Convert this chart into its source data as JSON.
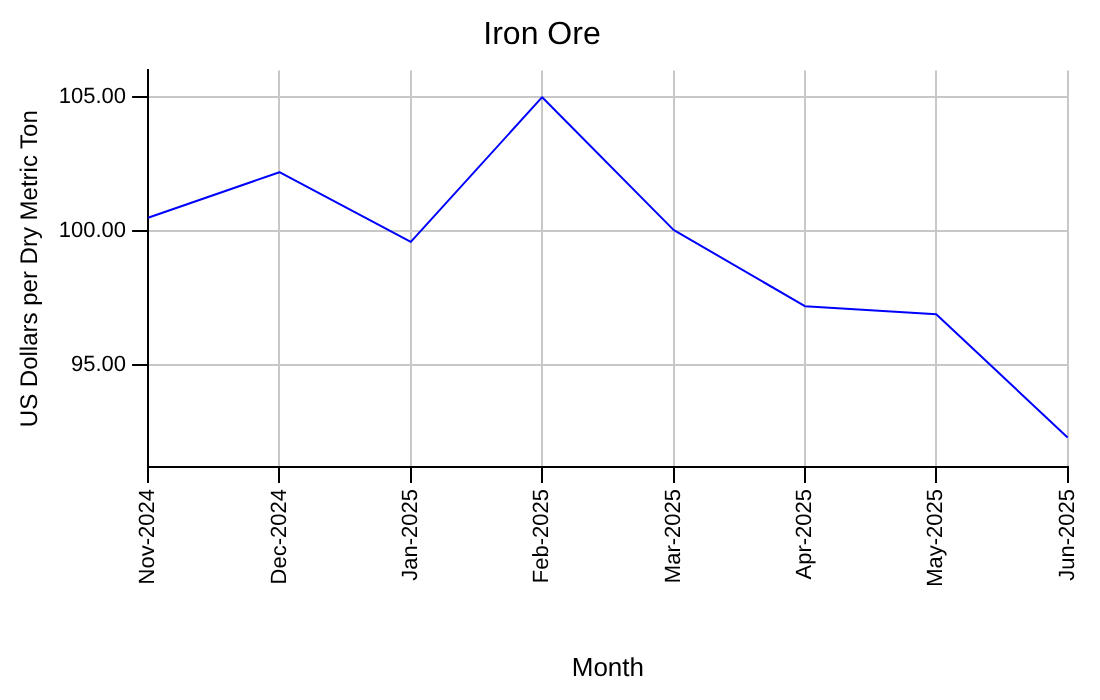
{
  "chart_data": {
    "type": "line",
    "title": "Iron Ore",
    "xlabel": "Month",
    "ylabel": "US Dollars per Dry Metric Ton",
    "categories": [
      "Nov-2024",
      "Dec-2024",
      "Jan-2025",
      "Feb-2025",
      "Mar-2025",
      "Apr-2025",
      "May-2025",
      "Jun-2025"
    ],
    "series": [
      {
        "color": "#0000ff",
        "values": [
          100.5,
          102.2,
          99.6,
          105.0,
          100.05,
          97.2,
          96.9,
          92.3
        ]
      }
    ],
    "ylim": [
      91.2,
      106
    ],
    "yticks": [
      {
        "value": 95,
        "label": "95.00"
      },
      {
        "value": 100,
        "label": "100.00"
      },
      {
        "value": 105,
        "label": "105.00"
      }
    ],
    "grid": true,
    "legend": false,
    "marker": "none",
    "line_style": "solid"
  }
}
